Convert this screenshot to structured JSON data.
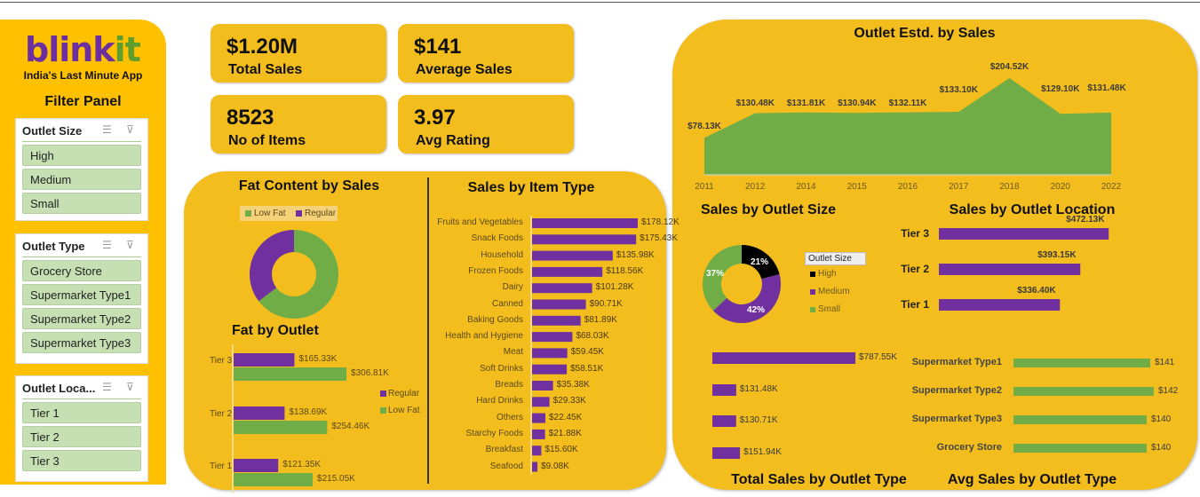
{
  "brand": {
    "logo_a": "blink",
    "logo_b": "it",
    "tagline": "India's Last Minute App",
    "filter_title": "Filter Panel"
  },
  "slicers": [
    {
      "title": "Outlet Size",
      "items": [
        "High",
        "Medium",
        "Small"
      ]
    },
    {
      "title": "Outlet Type",
      "items": [
        "Grocery Store",
        "Supermarket Type1",
        "Supermarket Type2",
        "Supermarket Type3"
      ]
    },
    {
      "title": "Outlet Loca...",
      "items": [
        "Tier 1",
        "Tier 2",
        "Tier 3"
      ]
    }
  ],
  "kpis": [
    {
      "value": "$1.20M",
      "label": "Total Sales"
    },
    {
      "value": "$141",
      "label": "Average Sales"
    },
    {
      "value": "8523",
      "label": "No of Items"
    },
    {
      "value": "3.97",
      "label": "Avg Rating"
    }
  ],
  "colors": {
    "purple": "#7030A0",
    "green": "#70AD47",
    "black": "#000000",
    "panel": "#F2BD1D",
    "left_panel": "#FFC000"
  },
  "chart_data": [
    {
      "id": "fat",
      "type": "pie",
      "title": "Fat Content by Sales",
      "legend": [
        "Low Fat",
        "Regular"
      ],
      "values": [
        64.6,
        35.4
      ],
      "legend_placement": "top"
    },
    {
      "id": "fatoutlet",
      "type": "bar",
      "title": "Fat by Outlet",
      "categories": [
        "Tier 3",
        "Tier 2",
        "Tier 1"
      ],
      "series": [
        {
          "name": "Regular",
          "values": [
            165.33,
            138.69,
            121.35
          ],
          "labels": [
            "$165.33K",
            "$138.69K",
            "$121.35K"
          ]
        },
        {
          "name": "Low Fat",
          "values": [
            306.81,
            254.46,
            215.05
          ],
          "labels": [
            "$306.81K",
            "$254.46K",
            "$215.05K"
          ]
        }
      ],
      "legend_placement": "right"
    },
    {
      "id": "itemtype",
      "type": "bar",
      "title": "Sales by Item Type",
      "categories": [
        "Fruits and Vegetables",
        "Snack Foods",
        "Household",
        "Frozen Foods",
        "Dairy",
        "Canned",
        "Baking Goods",
        "Health and Hygiene",
        "Meat",
        "Soft Drinks",
        "Breads",
        "Hard Drinks",
        "Others",
        "Starchy Foods",
        "Breakfast",
        "Seafood"
      ],
      "values": [
        178.12,
        175.43,
        135.98,
        118.56,
        101.28,
        90.71,
        81.89,
        68.03,
        59.45,
        58.51,
        35.38,
        29.33,
        22.45,
        21.88,
        15.6,
        9.08
      ],
      "labels": [
        "$178.12K",
        "$175.43K",
        "$135.98K",
        "$118.56K",
        "$101.28K",
        "$90.71K",
        "$81.89K",
        "$68.03K",
        "$59.45K",
        "$58.51K",
        "$35.38K",
        "$29.33K",
        "$22.45K",
        "$21.88K",
        "$15.60K",
        "$9.08K"
      ]
    },
    {
      "id": "estd",
      "type": "area",
      "title": "Outlet Estd. by Sales",
      "x": [
        "2011",
        "2012",
        "2014",
        "2015",
        "2016",
        "2017",
        "2018",
        "2020",
        "2022"
      ],
      "values": [
        78.13,
        130.48,
        131.81,
        130.94,
        132.11,
        133.1,
        204.52,
        129.1,
        131.48
      ],
      "labels": [
        "$78.13K",
        "$130.48K",
        "$131.81K",
        "$130.94K",
        "$132.11K",
        "$133.10K",
        "$204.52K",
        "$129.10K",
        "$131.48K"
      ]
    },
    {
      "id": "size",
      "type": "pie",
      "title": "Sales by Outlet Size",
      "legend_title": "Outlet Size",
      "legend": [
        "High",
        "Medium",
        "Small"
      ],
      "values": [
        21,
        42,
        37
      ],
      "labels": [
        "21%",
        "42%",
        "37%"
      ]
    },
    {
      "id": "location",
      "type": "bar",
      "title": "Sales by Outlet Location",
      "categories": [
        "Tier 3",
        "Tier 2",
        "Tier 1"
      ],
      "values": [
        472.13,
        393.15,
        336.4
      ],
      "labels": [
        "$472.13K",
        "$393.15K",
        "$336.40K"
      ]
    },
    {
      "id": "totaltype",
      "type": "bar",
      "title": "Total Sales by Outlet Type",
      "values": [
        787.55,
        131.48,
        130.71,
        151.94
      ],
      "labels": [
        "$787.55K",
        "$131.48K",
        "$130.71K",
        "$151.94K"
      ]
    },
    {
      "id": "avgtype",
      "type": "bar",
      "title": "Avg Sales by Outlet Type",
      "categories": [
        "Supermarket Type1",
        "Supermarket Type2",
        "Supermarket Type3",
        "Grocery Store"
      ],
      "values": [
        141,
        142,
        140,
        140
      ],
      "labels": [
        "$141",
        "$142",
        "$140",
        "$140"
      ]
    }
  ]
}
